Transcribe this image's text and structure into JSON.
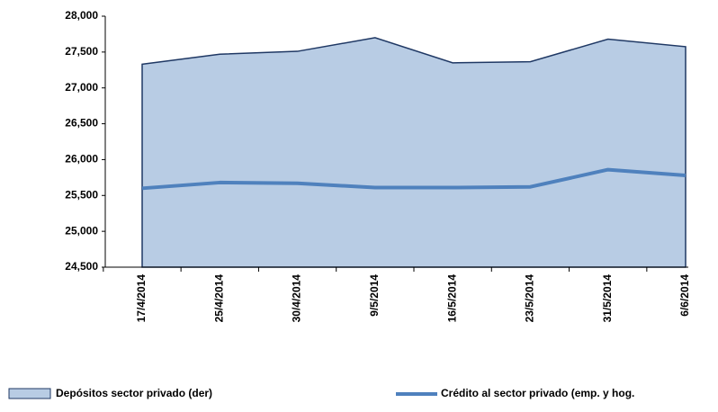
{
  "chart_data": {
    "type": "area-line",
    "categories": [
      "17/4/2014",
      "25/4/2014",
      "30/4/2014",
      "9/5/2014",
      "16/5/2014",
      "23/5/2014",
      "31/5/2014",
      "6/6/2014"
    ],
    "series": [
      {
        "name": "Depósitos sector privado (der)",
        "type": "area",
        "color": "#b8cce4",
        "values": [
          27330,
          27470,
          27510,
          27700,
          27350,
          27365,
          27680,
          27575
        ]
      },
      {
        "name": "Crédito al sector privado (emp. y hog.",
        "type": "line",
        "color": "#4f81bd",
        "values": [
          25600,
          25680,
          25670,
          25610,
          25610,
          25620,
          25860,
          25780
        ]
      }
    ],
    "ylim": [
      24500,
      28000
    ],
    "yticks": [
      {
        "value": 24500,
        "label": "24,500"
      },
      {
        "value": 25000,
        "label": "25,000"
      },
      {
        "value": 25500,
        "label": "25,500"
      },
      {
        "value": 26000,
        "label": "26,000"
      },
      {
        "value": 26500,
        "label": "26,500"
      },
      {
        "value": 27000,
        "label": "27,000"
      },
      {
        "value": 27500,
        "label": "27,500"
      },
      {
        "value": 28000,
        "label": "28,000"
      }
    ]
  }
}
